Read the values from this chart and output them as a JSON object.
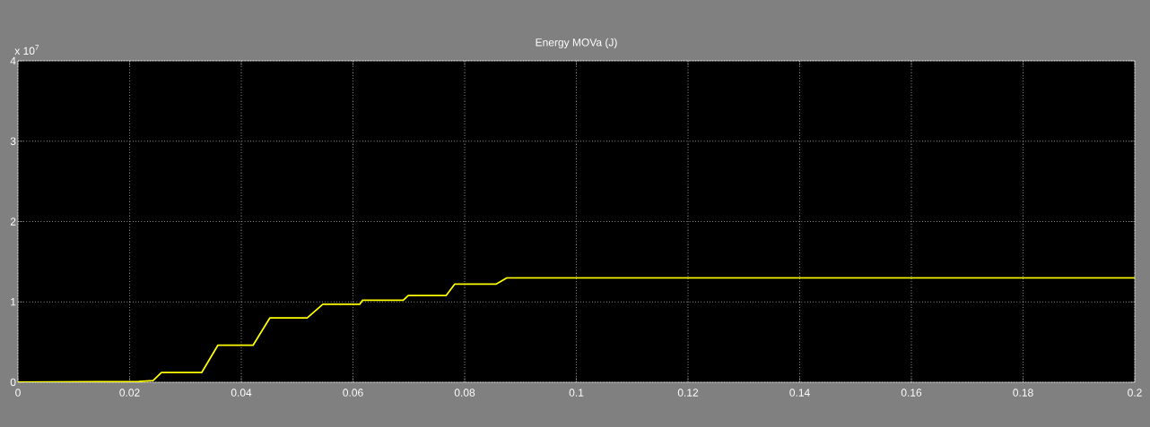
{
  "chart_data": {
    "type": "line",
    "title": "Energy MOVa (J)",
    "annotations": [
      "x 10$^{7}$"
    ],
    "x": [
      0,
      0.0217,
      0.0242,
      0.0257,
      0.0329,
      0.0358,
      0.0421,
      0.0451,
      0.0518,
      0.0546,
      0.0612,
      0.0617,
      0.069,
      0.0699,
      0.0767,
      0.0782,
      0.0856,
      0.0876,
      0.2
    ],
    "series": [
      {
        "color": "#ffff00",
        "values": [
          0,
          0.01,
          0.02,
          0.12,
          0.12,
          0.46,
          0.46,
          0.8,
          0.8,
          0.97,
          0.97,
          1.02,
          1.02,
          1.08,
          1.08,
          1.22,
          1.22,
          1.3,
          1.3
        ]
      }
    ],
    "xlim": [
      0,
      0.2
    ],
    "ylim": [
      0,
      4
    ],
    "xticks": [
      0,
      0.02,
      0.04,
      0.06,
      0.08,
      0.1,
      0.12,
      0.14,
      0.16,
      0.18,
      0.2
    ],
    "yticks": [
      0,
      1,
      2,
      3,
      4
    ],
    "grid": true,
    "marker": "none",
    "line_style": "solid"
  }
}
